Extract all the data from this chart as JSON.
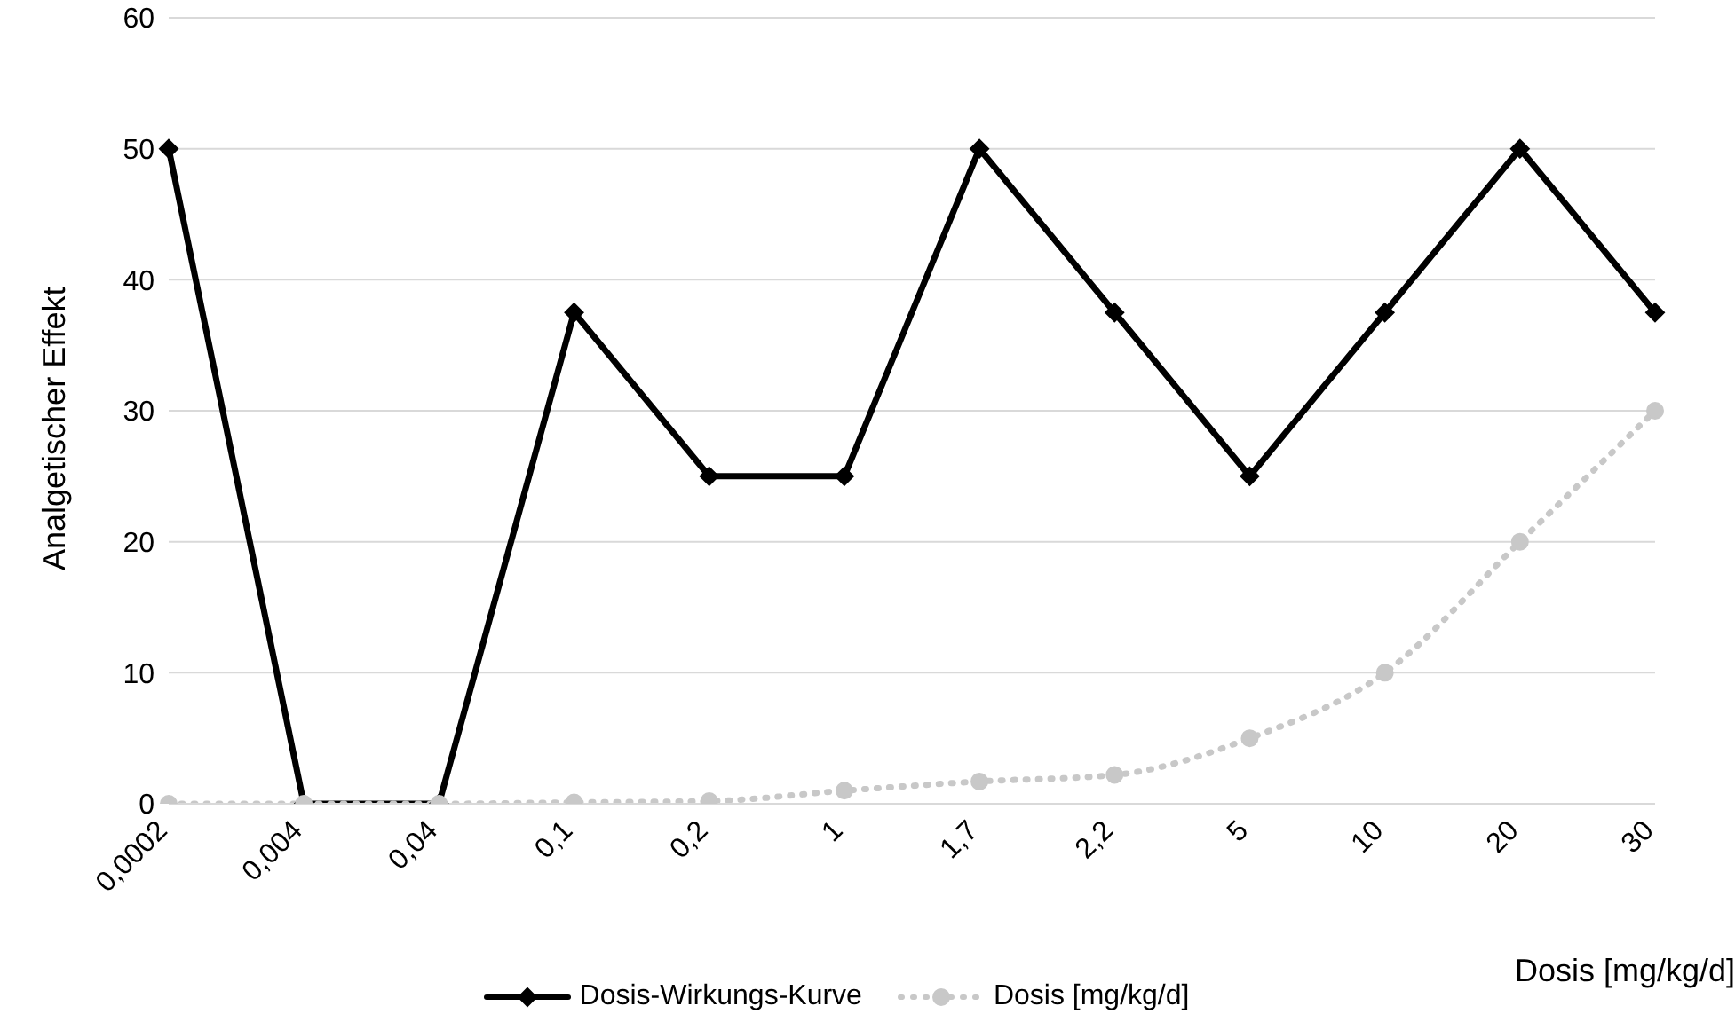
{
  "chart_data": {
    "type": "line",
    "ylabel": "Analgetischer Effekt",
    "xlabel": "Dosis [mg/kg/d]",
    "categories": [
      "0,0002",
      "0,004",
      "0,04",
      "0,1",
      "0,2",
      "1",
      "1,7",
      "2,2",
      "5",
      "10",
      "20",
      "30"
    ],
    "series": [
      {
        "name": "Dosis-Wirkungs-Kurve",
        "color": "#000000",
        "marker": "diamond",
        "line_style": "solid",
        "values": [
          50,
          0,
          0,
          37.5,
          25,
          25,
          50,
          37.5,
          25,
          37.5,
          50,
          37.5
        ]
      },
      {
        "name": "Dosis [mg/kg/d]",
        "color": "#c8c8c8",
        "marker": "circle",
        "line_style": "dotted",
        "values": [
          0,
          0,
          0,
          0.1,
          0.2,
          1,
          1.7,
          2.2,
          5,
          10,
          20,
          30
        ]
      }
    ],
    "ylim": [
      0,
      60
    ],
    "yticks": [
      0,
      10,
      20,
      30,
      40,
      50,
      60
    ],
    "grid": "y",
    "legend": "bottom"
  }
}
